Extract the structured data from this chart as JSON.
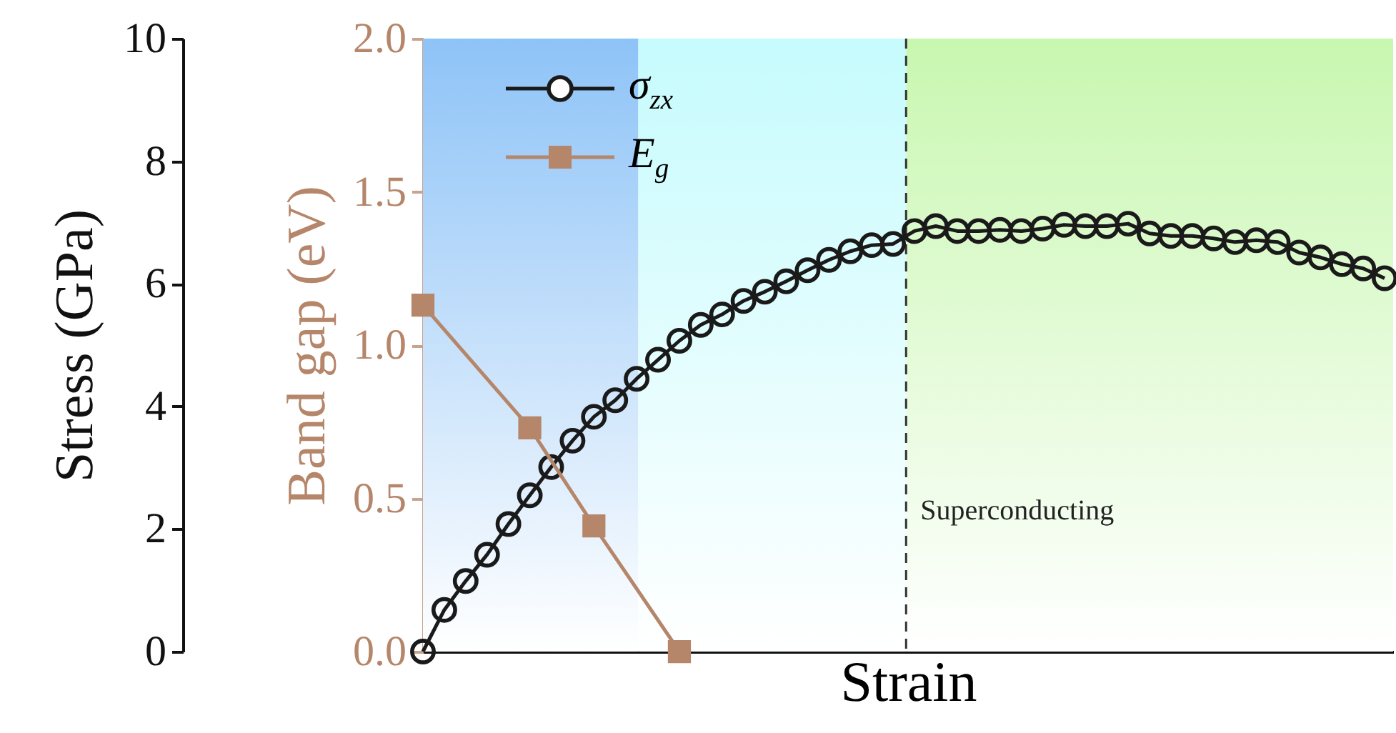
{
  "chart_data": {
    "type": "line",
    "xlabel": "Strain",
    "ylabel": "Stress (GPa)",
    "y2label": "Band gap (eV)",
    "categories": [
      null,
      null,
      null,
      null,
      null,
      null,
      null,
      null,
      null,
      null,
      null,
      null,
      null,
      null,
      null,
      null,
      null,
      null,
      null,
      null,
      null,
      null,
      null,
      null,
      null,
      null,
      null,
      null,
      null,
      null,
      null,
      null,
      null,
      null,
      null,
      null,
      null,
      null,
      null,
      null,
      null,
      null,
      null,
      null,
      null,
      null
    ],
    "annotations": [
      "Superconducting"
    ],
    "ylim": [
      0,
      10
    ],
    "yticks": [
      0,
      2,
      4,
      6,
      8,
      10
    ],
    "y2lim": [
      0,
      2
    ],
    "y2ticks": [
      {
        "value": 0,
        "label": "0.0"
      },
      0.5,
      {
        "value": 1,
        "label": "1.0"
      },
      1.5,
      {
        "value": 2,
        "label": "2.0"
      }
    ],
    "tick_labels": "y",
    "legend": "top left",
    "grid": false,
    "series": [
      {
        "name": "σ$_{zx}$",
        "color": "#1a1a1a",
        "marker": "circle",
        "values": [
          0,
          0.68,
          1.15,
          1.58,
          2.08,
          2.55,
          3.01,
          3.44,
          3.83,
          4.1,
          4.45,
          4.76,
          5.07,
          5.33,
          5.5,
          5.72,
          5.87,
          6.04,
          6.22,
          6.39,
          6.53,
          6.63,
          6.65,
          6.86,
          6.94,
          6.86,
          6.86,
          6.88,
          6.86,
          6.9,
          6.96,
          6.94,
          6.94,
          6.98,
          6.82,
          6.78,
          6.78,
          6.74,
          6.68,
          6.71,
          6.68,
          6.51,
          6.43,
          6.32,
          6.25,
          6.09
        ]
      },
      {
        "name": "E$_{g}$",
        "color": "#b5866a",
        "marker": "square",
        "axis": "y2",
        "values": [
          1.13,
          null,
          null,
          null,
          null,
          0.73,
          null,
          null,
          0.41,
          null,
          null,
          null,
          0,
          null,
          null,
          null,
          null,
          null,
          null,
          null,
          null,
          null,
          null,
          null,
          null,
          null,
          null,
          null,
          null,
          null,
          null,
          null,
          null,
          null,
          null,
          null,
          null,
          null,
          null,
          null,
          null,
          null,
          null,
          null,
          null,
          null
        ]
      }
    ],
    "line_style": "solid"
  }
}
